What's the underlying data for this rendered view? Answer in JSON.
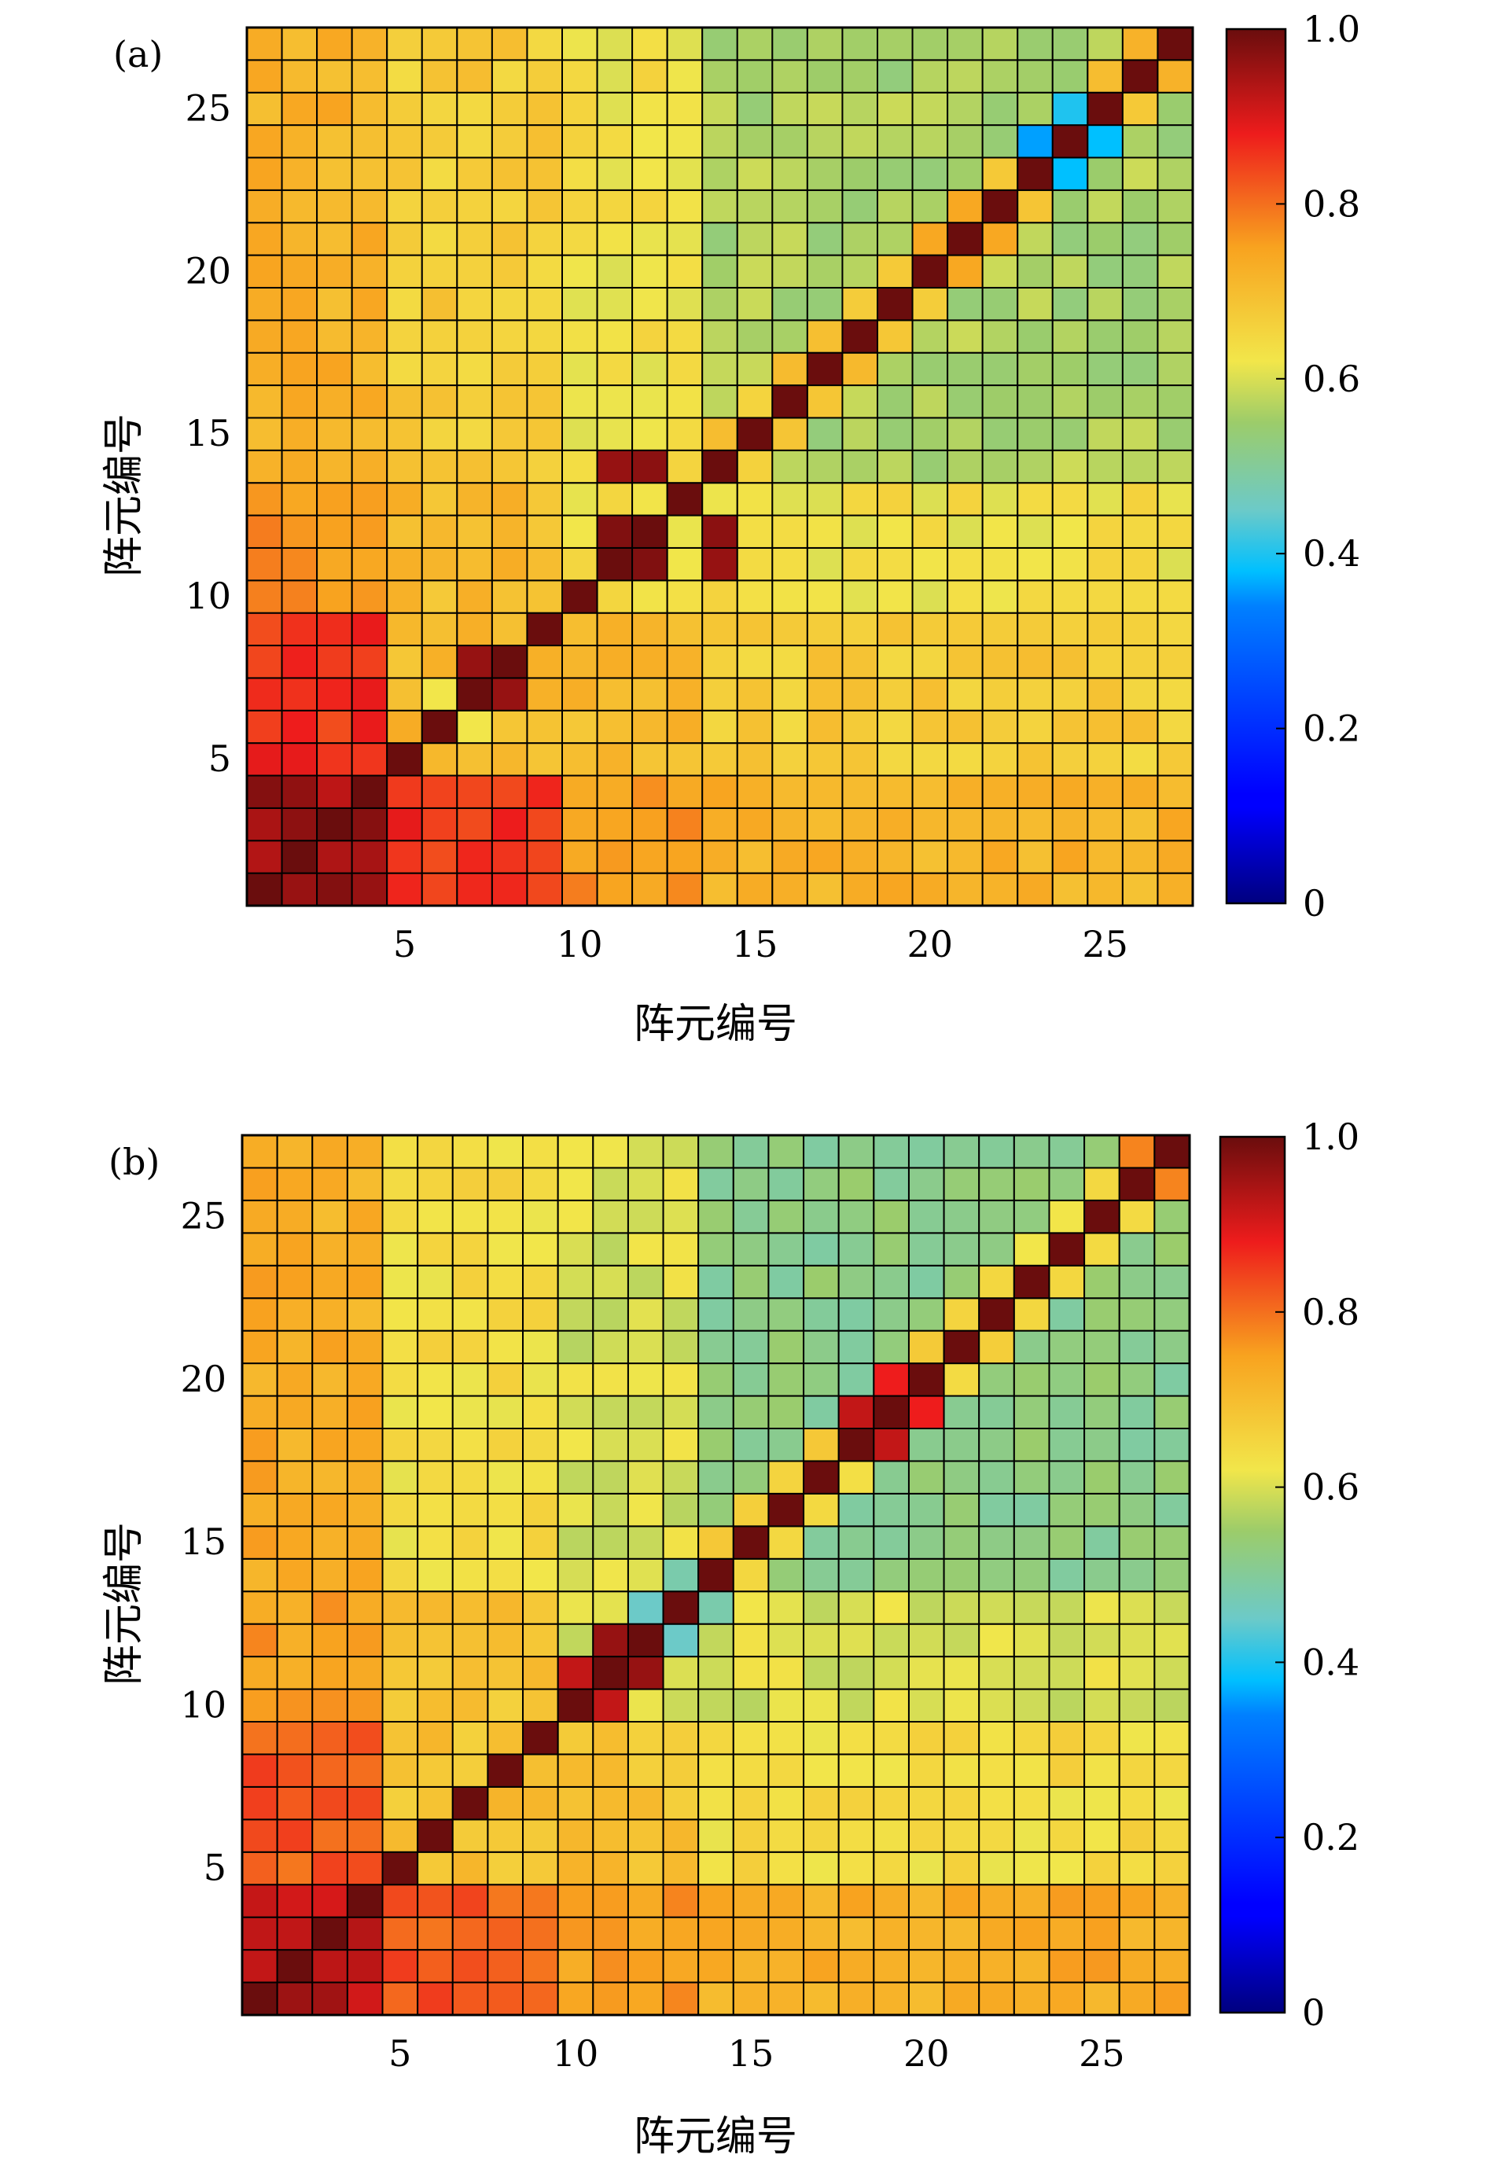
{
  "chart_data": [
    {
      "type": "heatmap",
      "panel_label": "(a)",
      "xlabel": "阵元编号",
      "ylabel": "阵元编号",
      "x_ticks": [
        5,
        10,
        15,
        20,
        25
      ],
      "y_ticks": [
        5,
        10,
        15,
        20,
        25
      ],
      "n": 27,
      "xlim": [
        1,
        27
      ],
      "ylim": [
        1,
        27
      ],
      "colorbar": {
        "min": 0,
        "max": 1,
        "ticks": [
          "0",
          "0.2",
          "0.4",
          "0.6",
          "0.8",
          "1.0"
        ]
      },
      "grid": true,
      "base": {
        "block_low": 0.95,
        "left_mid": 0.86,
        "left_high": 0.76,
        "top_left": 0.72,
        "bottom_band": 0.78,
        "middle": 0.63,
        "upper_right": 0.56,
        "diagonal": 1.0
      },
      "highlights": [
        {
          "i": 11,
          "j": 12,
          "v": 0.98
        },
        {
          "i": 12,
          "j": 11,
          "v": 0.98
        },
        {
          "i": 11,
          "j": 14,
          "v": 0.96
        },
        {
          "i": 14,
          "j": 11,
          "v": 0.96
        },
        {
          "i": 12,
          "j": 14,
          "v": 0.97
        },
        {
          "i": 14,
          "j": 12,
          "v": 0.97
        },
        {
          "i": 7,
          "j": 8,
          "v": 0.96
        },
        {
          "i": 8,
          "j": 7,
          "v": 0.96
        },
        {
          "i": 6,
          "j": 7,
          "v": 0.62
        },
        {
          "i": 7,
          "j": 6,
          "v": 0.62
        },
        {
          "i": 23,
          "j": 24,
          "v": 0.36
        },
        {
          "i": 24,
          "j": 23,
          "v": 0.38
        },
        {
          "i": 24,
          "j": 25,
          "v": 0.4
        },
        {
          "i": 25,
          "j": 24,
          "v": 0.38
        },
        {
          "i": 26,
          "j": 27,
          "v": 0.72
        },
        {
          "i": 27,
          "j": 26,
          "v": 0.72
        },
        {
          "i": 21,
          "j": 22,
          "v": 0.74
        },
        {
          "i": 22,
          "j": 21,
          "v": 0.74
        },
        {
          "i": 20,
          "j": 21,
          "v": 0.74
        },
        {
          "i": 21,
          "j": 20,
          "v": 0.74
        }
      ]
    },
    {
      "type": "heatmap",
      "panel_label": "(b)",
      "xlabel": "阵元编号",
      "ylabel": "阵元编号",
      "x_ticks": [
        5,
        10,
        15,
        20,
        25
      ],
      "y_ticks": [
        5,
        10,
        15,
        20,
        25
      ],
      "n": 27,
      "xlim": [
        1,
        27
      ],
      "ylim": [
        1,
        27
      ],
      "colorbar": {
        "min": 0,
        "max": 1,
        "ticks": [
          "0",
          "0.2",
          "0.4",
          "0.6",
          "0.8",
          "1.0"
        ]
      },
      "grid": true,
      "base": {
        "block_low": 0.93,
        "left_mid": 0.82,
        "left_high": 0.75,
        "top_left": 0.73,
        "bottom_band": 0.78,
        "middle": 0.6,
        "upper_right": 0.52,
        "diagonal": 1.0
      },
      "highlights": [
        {
          "i": 10,
          "j": 11,
          "v": 0.92
        },
        {
          "i": 11,
          "j": 10,
          "v": 0.92
        },
        {
          "i": 11,
          "j": 12,
          "v": 0.96
        },
        {
          "i": 12,
          "j": 11,
          "v": 0.96
        },
        {
          "i": 12,
          "j": 13,
          "v": 0.45
        },
        {
          "i": 13,
          "j": 12,
          "v": 0.45
        },
        {
          "i": 13,
          "j": 14,
          "v": 0.48
        },
        {
          "i": 14,
          "j": 13,
          "v": 0.48
        },
        {
          "i": 18,
          "j": 19,
          "v": 0.92
        },
        {
          "i": 19,
          "j": 18,
          "v": 0.92
        },
        {
          "i": 19,
          "j": 20,
          "v": 0.88
        },
        {
          "i": 20,
          "j": 19,
          "v": 0.88
        },
        {
          "i": 26,
          "j": 27,
          "v": 0.78
        },
        {
          "i": 27,
          "j": 26,
          "v": 0.78
        },
        {
          "i": 22,
          "j": 23,
          "v": 0.65
        },
        {
          "i": 23,
          "j": 22,
          "v": 0.65
        }
      ]
    }
  ]
}
